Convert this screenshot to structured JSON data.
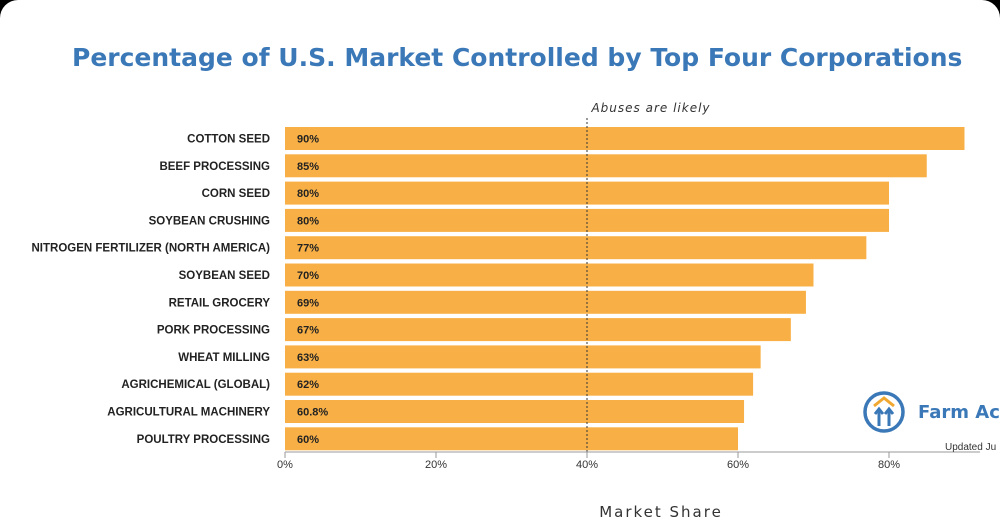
{
  "chart_data": {
    "type": "bar",
    "orientation": "horizontal",
    "title": "Percentage of U.S. Market Controlled by Top Four Corporations",
    "xlabel": "Market Share",
    "ylabel": "",
    "xlim": [
      0,
      90
    ],
    "xticks": [
      0,
      20,
      40,
      60,
      80
    ],
    "xtick_labels": [
      "0%",
      "20%",
      "40%",
      "60%",
      "80%"
    ],
    "grid": false,
    "categories": [
      "COTTON SEED",
      "BEEF PROCESSING",
      "CORN SEED",
      "SOYBEAN CRUSHING",
      "NITROGEN FERTILIZER (NORTH AMERICA)",
      "SOYBEAN SEED",
      "RETAIL GROCERY",
      "PORK PROCESSING",
      "WHEAT MILLING",
      "AGRICHEMICAL (GLOBAL)",
      "AGRICULTURAL MACHINERY",
      "POULTRY PROCESSING"
    ],
    "values": [
      90,
      85,
      80,
      80,
      77,
      70,
      69,
      67,
      63,
      62,
      60.8,
      60
    ],
    "value_labels": [
      "90%",
      "85%",
      "80%",
      "80%",
      "77%",
      "70%",
      "69%",
      "67%",
      "63%",
      "62%",
      "60.8%",
      "60%"
    ],
    "bar_color": "#f8b046",
    "annotation": {
      "x": 40,
      "text": "Abuses are likely",
      "style": "dashed vertical line"
    }
  },
  "brand": {
    "name": "Farm Ac",
    "updated": "Updated Ju",
    "color": "#3a78b8",
    "accent": "#f0a830"
  }
}
